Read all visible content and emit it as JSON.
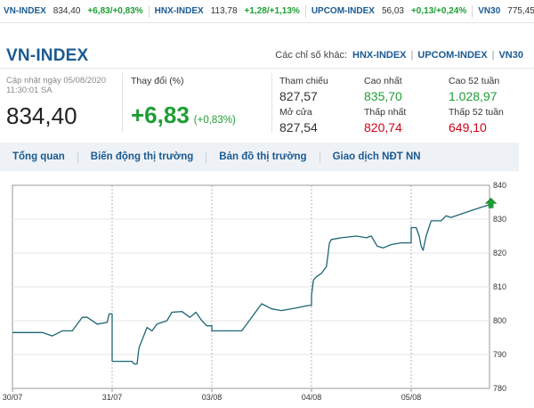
{
  "ticker": [
    {
      "name": "VN-INDEX",
      "value": "834,40",
      "change": "+6,83/+0,83%"
    },
    {
      "name": "HNX-INDEX",
      "value": "113,78",
      "change": "+1,28/+1,13%"
    },
    {
      "name": "UPCOM-INDEX",
      "value": "56,03",
      "change": "+0,13/+0,24%"
    },
    {
      "name": "VN30",
      "value": "775,45",
      "change": ""
    }
  ],
  "header": {
    "title": "VN-INDEX",
    "other_label": "Các chỉ số khác:",
    "other_links": [
      "HNX-INDEX",
      "UPCOM-INDEX",
      "VN30"
    ],
    "updated_label": "Cập nhật ngày 05/08/2020",
    "updated_time": "11:30:01 SA",
    "price": "834,40",
    "change_label": "Thay đổi (%)",
    "change_value": "+6,83",
    "change_pct": "(+0,83%)"
  },
  "stats": {
    "ref_label": "Tham chiếu",
    "ref_value": "827,57",
    "high_label": "Cao nhất",
    "high_value": "835,70",
    "high52_label": "Cao 52 tuần",
    "high52_value": "1.028,97",
    "open_label": "Mở cửa",
    "open_value": "827,54",
    "low_label": "Thấp nhất",
    "low_value": "820,74",
    "low52_label": "Thấp 52 tuần",
    "low52_value": "649,10"
  },
  "tabs": [
    "Tổng quan",
    "Biến động thị trường",
    "Bản đồ thị trường",
    "Giao dịch NĐT NN"
  ],
  "colors": {
    "brand": "#1a5a92",
    "up": "#1e9e34",
    "down": "#d0021b",
    "line": "#1d6673"
  },
  "chart_data": {
    "type": "line",
    "x_labels": [
      "30/07",
      "31/07",
      "03/08",
      "04/08",
      "05/08"
    ],
    "y_ticks": [
      780,
      790,
      800,
      810,
      820,
      830,
      840
    ],
    "ylim": [
      780,
      840
    ],
    "grid": true,
    "days": 5,
    "series": [
      {
        "values": [
          [
            0.0,
            796.5
          ],
          [
            0.3,
            796.5
          ],
          [
            0.4,
            795.5
          ],
          [
            0.5,
            797
          ],
          [
            0.6,
            797
          ],
          [
            0.7,
            801
          ],
          [
            0.75,
            801
          ],
          [
            0.85,
            799
          ],
          [
            0.95,
            799.5
          ],
          [
            0.97,
            802
          ],
          [
            0.99,
            802
          ],
          [
            1.0,
            788
          ],
          [
            1.2,
            788
          ],
          [
            1.22,
            787.2
          ],
          [
            1.25,
            787.2
          ],
          [
            1.27,
            792
          ],
          [
            1.35,
            798
          ],
          [
            1.4,
            797
          ],
          [
            1.45,
            799
          ],
          [
            1.55,
            800
          ],
          [
            1.6,
            802.5
          ],
          [
            1.7,
            802.7
          ],
          [
            1.78,
            801
          ],
          [
            1.84,
            802.5
          ],
          [
            1.9,
            800
          ],
          [
            1.95,
            798.5
          ],
          [
            1.99,
            798.5
          ],
          [
            2.0,
            797
          ],
          [
            2.3,
            797
          ],
          [
            2.4,
            801
          ],
          [
            2.45,
            803
          ],
          [
            2.5,
            805
          ],
          [
            2.6,
            803.5
          ],
          [
            2.7,
            803
          ],
          [
            2.85,
            803.8
          ],
          [
            2.97,
            804.5
          ],
          [
            2.99,
            804.5
          ],
          [
            3.0,
            807.5
          ],
          [
            3.02,
            812
          ],
          [
            3.05,
            813
          ],
          [
            3.1,
            814
          ],
          [
            3.15,
            816
          ],
          [
            3.18,
            823
          ],
          [
            3.2,
            824
          ],
          [
            3.3,
            824.5
          ],
          [
            3.45,
            825
          ],
          [
            3.55,
            824.5
          ],
          [
            3.6,
            825
          ],
          [
            3.66,
            822
          ],
          [
            3.72,
            821.5
          ],
          [
            3.8,
            822.5
          ],
          [
            3.9,
            823
          ],
          [
            3.99,
            823
          ],
          [
            4.0,
            827.5
          ],
          [
            4.05,
            827.5
          ],
          [
            4.08,
            825
          ],
          [
            4.1,
            822
          ],
          [
            4.12,
            820.8
          ],
          [
            4.15,
            825
          ],
          [
            4.2,
            829.5
          ],
          [
            4.3,
            829.5
          ],
          [
            4.35,
            831
          ],
          [
            4.4,
            830.5
          ],
          [
            4.5,
            831.5
          ],
          [
            4.6,
            832.5
          ],
          [
            4.7,
            833.5
          ],
          [
            4.8,
            834.4
          ]
        ]
      }
    ]
  }
}
